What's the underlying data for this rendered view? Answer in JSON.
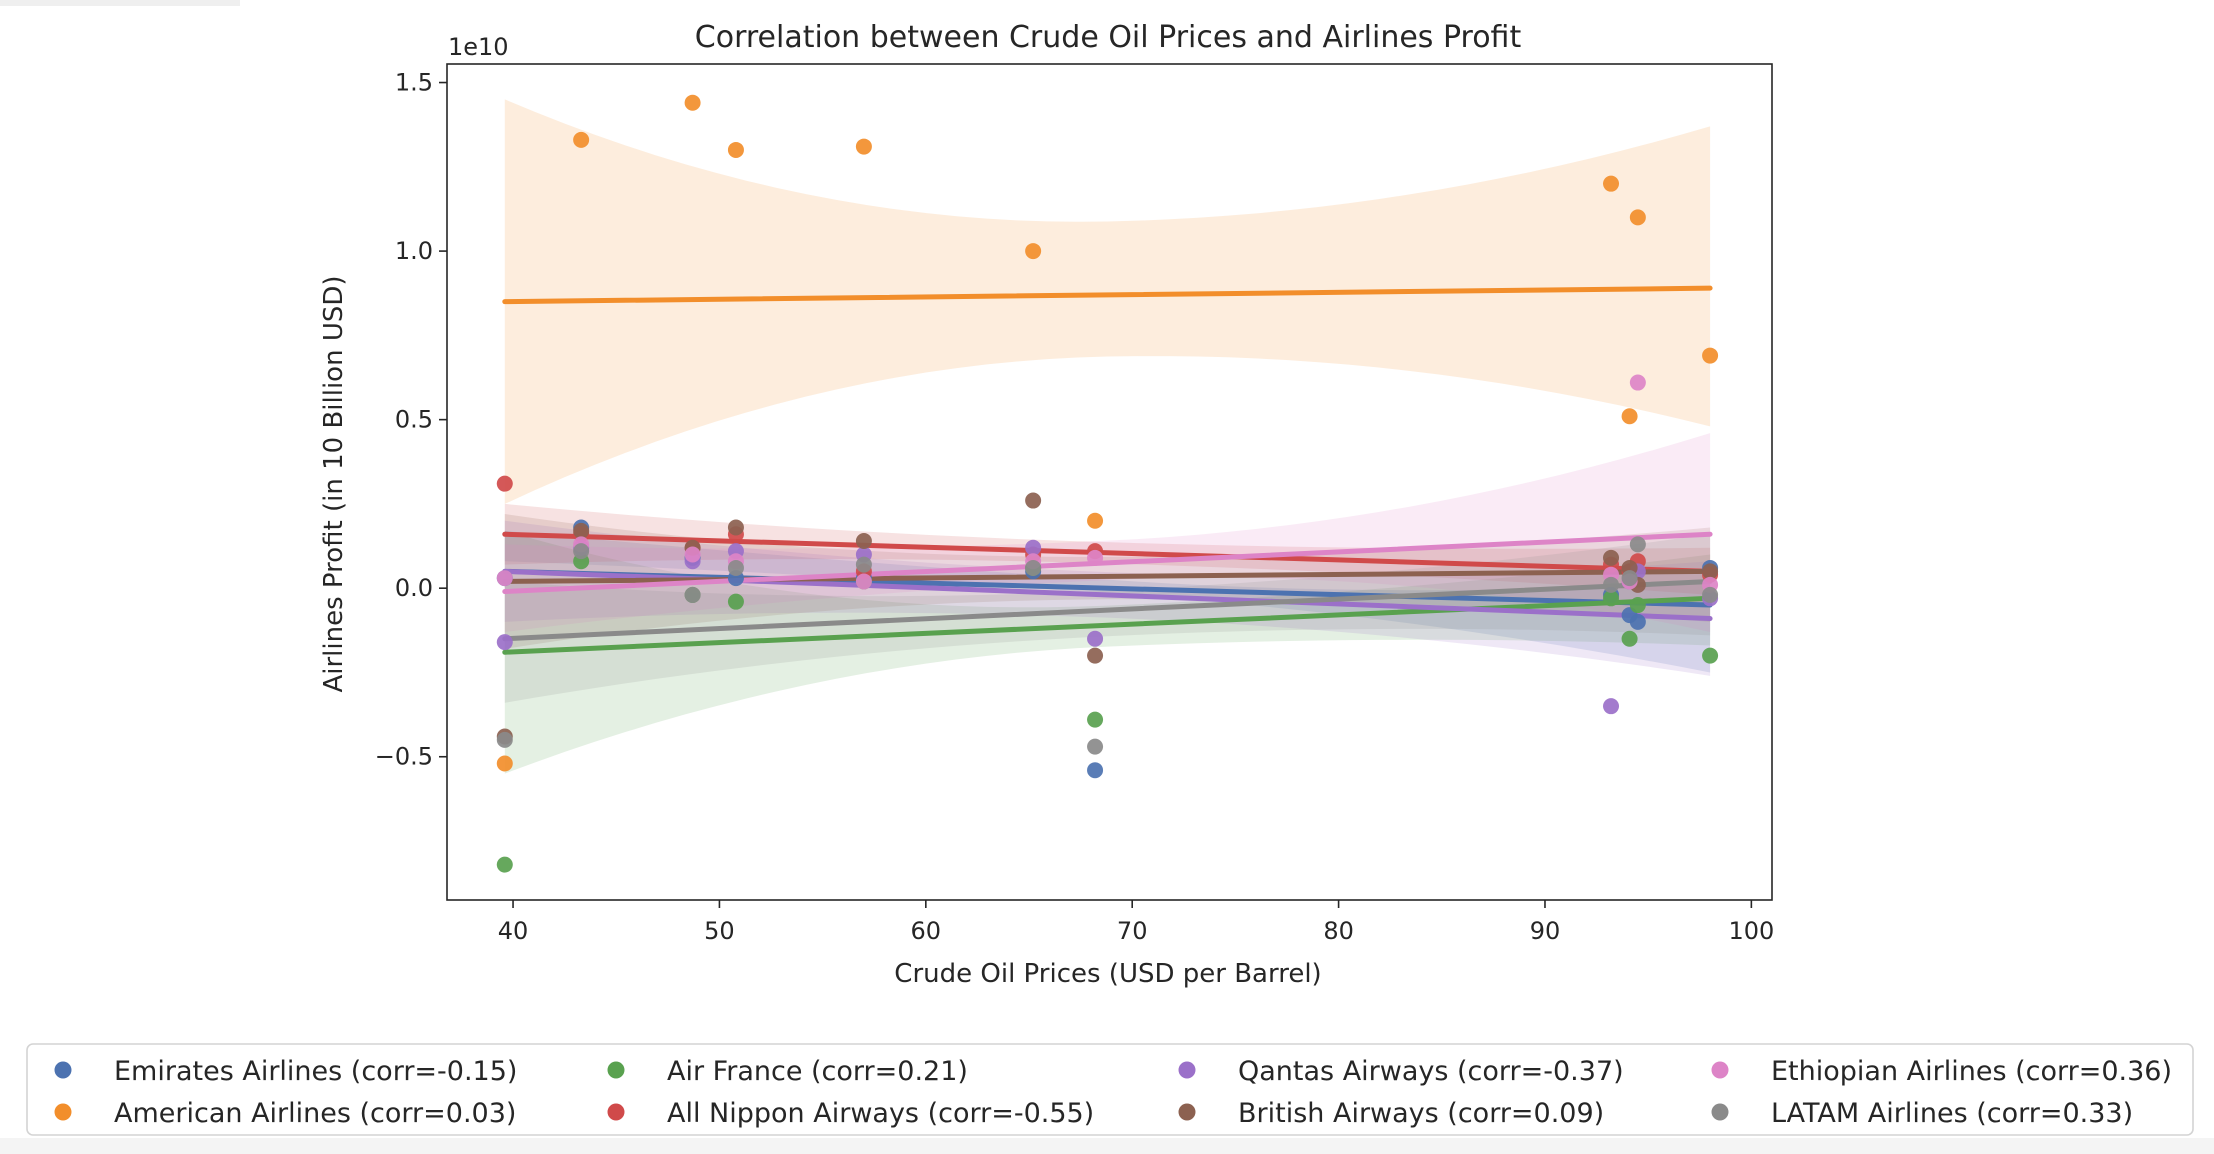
{
  "chart_data": {
    "type": "scatter",
    "title": "Correlation between Crude Oil Prices and Airlines Profit",
    "xlabel": "Crude Oil Prices (USD per Barrel)",
    "ylabel": "Airlines Profit (in 10 Billion USD)",
    "y_offset_text": "1e10",
    "xlim": [
      36.8,
      101
    ],
    "ylim": [
      -0.925,
      1.555
    ],
    "xticks": [
      40,
      50,
      60,
      70,
      80,
      90,
      100
    ],
    "xtick_labels": [
      "40",
      "50",
      "60",
      "70",
      "80",
      "90",
      "100"
    ],
    "yticks": [
      -0.5,
      0.0,
      0.5,
      1.0,
      1.5
    ],
    "ytick_labels": [
      "−0.5",
      "0.0",
      "0.5",
      "1.0",
      "1.5"
    ],
    "grid": false,
    "legend_position": "bottom",
    "regression_x_range": [
      39.6,
      98
    ],
    "series": [
      {
        "name": "Emirates Airlines (corr=-0.15)",
        "color": "#4c72b0",
        "points": [
          [
            39.6,
            0.03
          ],
          [
            43.3,
            0.18
          ],
          [
            48.7,
            0.09
          ],
          [
            50.8,
            0.03
          ],
          [
            57.0,
            0.03
          ],
          [
            65.2,
            0.05
          ],
          [
            68.2,
            -0.54
          ],
          [
            93.2,
            -0.02
          ],
          [
            94.1,
            -0.08
          ],
          [
            94.5,
            -0.1
          ],
          [
            98.0,
            0.06
          ]
        ],
        "fit": [
          0.05,
          -0.05
        ],
        "band": [
          [
            0.17,
            0.08
          ],
          [
            0.02,
            -0.25
          ]
        ]
      },
      {
        "name": "American Airlines (corr=0.03)",
        "color": "#f28e2b",
        "points": [
          [
            39.6,
            -0.52
          ],
          [
            43.3,
            1.33
          ],
          [
            48.7,
            1.44
          ],
          [
            50.8,
            1.3
          ],
          [
            57.0,
            1.31
          ],
          [
            65.2,
            1.0
          ],
          [
            68.2,
            0.2
          ],
          [
            93.2,
            1.2
          ],
          [
            94.1,
            0.51
          ],
          [
            94.5,
            1.1
          ],
          [
            98.0,
            0.69
          ]
        ],
        "fit": [
          0.85,
          0.89
        ],
        "band": [
          [
            1.45,
            0.25
          ],
          [
            1.37,
            0.48
          ]
        ]
      },
      {
        "name": "Air France (corr=0.21)",
        "color": "#59a14f",
        "points": [
          [
            39.6,
            -0.82
          ],
          [
            43.3,
            0.08
          ],
          [
            48.7,
            -0.02
          ],
          [
            50.8,
            -0.04
          ],
          [
            57.0,
            0.02
          ],
          [
            65.2,
            0.06
          ],
          [
            68.2,
            -0.39
          ],
          [
            93.2,
            -0.03
          ],
          [
            94.1,
            -0.15
          ],
          [
            94.5,
            -0.05
          ],
          [
            98.0,
            -0.2
          ]
        ],
        "fit": [
          -0.19,
          -0.03
        ],
        "band": [
          [
            0.17,
            -0.55
          ],
          [
            0.1,
            -0.17
          ]
        ]
      },
      {
        "name": "All Nippon Airways (corr=-0.55)",
        "color": "#d04a4a",
        "points": [
          [
            39.6,
            0.31
          ],
          [
            43.3,
            0.16
          ],
          [
            48.7,
            0.12
          ],
          [
            50.8,
            0.16
          ],
          [
            57.0,
            0.05
          ],
          [
            65.2,
            0.1
          ],
          [
            68.2,
            0.11
          ],
          [
            93.2,
            0.07
          ],
          [
            94.1,
            0.05
          ],
          [
            94.5,
            0.08
          ],
          [
            98.0,
            0.04
          ]
        ],
        "fit": [
          0.16,
          0.05
        ],
        "band": [
          [
            0.25,
            0.07
          ],
          [
            0.12,
            -0.02
          ]
        ]
      },
      {
        "name": "Qantas Airways (corr=-0.37)",
        "color": "#9b70c9",
        "points": [
          [
            39.6,
            -0.16
          ],
          [
            43.3,
            0.12
          ],
          [
            48.7,
            0.08
          ],
          [
            50.8,
            0.11
          ],
          [
            57.0,
            0.1
          ],
          [
            65.2,
            0.12
          ],
          [
            68.2,
            -0.15
          ],
          [
            93.2,
            -0.35
          ],
          [
            94.1,
            0.02
          ],
          [
            94.5,
            0.05
          ],
          [
            98.0,
            -0.03
          ]
        ],
        "fit": [
          0.05,
          -0.09
        ],
        "band": [
          [
            0.2,
            -0.1
          ],
          [
            0.08,
            -0.26
          ]
        ]
      },
      {
        "name": "British Airways (corr=0.09)",
        "color": "#8c6150",
        "points": [
          [
            39.6,
            -0.44
          ],
          [
            43.3,
            0.17
          ],
          [
            48.7,
            0.12
          ],
          [
            50.8,
            0.18
          ],
          [
            57.0,
            0.14
          ],
          [
            65.2,
            0.26
          ],
          [
            68.2,
            -0.2
          ],
          [
            93.2,
            0.09
          ],
          [
            94.1,
            0.06
          ],
          [
            94.5,
            0.01
          ],
          [
            98.0,
            0.05
          ]
        ],
        "fit": [
          0.02,
          0.05
        ],
        "band": [
          [
            0.22,
            -0.18
          ],
          [
            0.18,
            -0.1
          ]
        ]
      },
      {
        "name": "Ethiopian Airlines (corr=0.36)",
        "color": "#dd84c7",
        "points": [
          [
            39.6,
            0.03
          ],
          [
            43.3,
            0.13
          ],
          [
            48.7,
            0.1
          ],
          [
            50.8,
            0.08
          ],
          [
            57.0,
            0.02
          ],
          [
            65.2,
            0.08
          ],
          [
            68.2,
            0.09
          ],
          [
            93.2,
            0.04
          ],
          [
            94.1,
            0.02
          ],
          [
            94.5,
            0.61
          ],
          [
            98.0,
            0.01
          ]
        ],
        "fit": [
          -0.01,
          0.16
        ],
        "band": [
          [
            0.13,
            -0.13
          ],
          [
            0.46,
            -0.13
          ]
        ]
      },
      {
        "name": "LATAM Airlines (corr=0.33)",
        "color": "#8a8a8a",
        "points": [
          [
            39.6,
            -0.45
          ],
          [
            43.3,
            0.11
          ],
          [
            48.7,
            -0.02
          ],
          [
            50.8,
            0.06
          ],
          [
            57.0,
            0.07
          ],
          [
            65.2,
            0.06
          ],
          [
            68.2,
            -0.47
          ],
          [
            93.2,
            0.01
          ],
          [
            94.1,
            0.03
          ],
          [
            94.5,
            0.13
          ],
          [
            98.0,
            -0.02
          ]
        ],
        "fit": [
          -0.15,
          0.02
        ],
        "band": [
          [
            0.02,
            -0.34
          ],
          [
            0.16,
            -0.14
          ]
        ]
      }
    ]
  }
}
